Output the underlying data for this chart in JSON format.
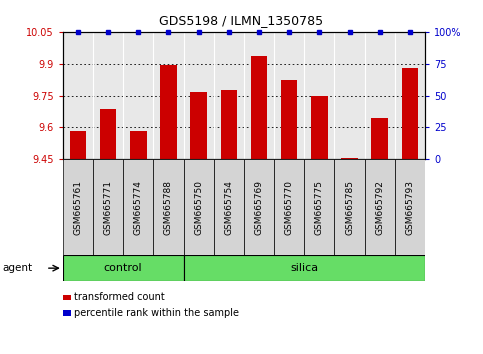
{
  "title": "GDS5198 / ILMN_1350785",
  "samples": [
    "GSM665761",
    "GSM665771",
    "GSM665774",
    "GSM665788",
    "GSM665750",
    "GSM665754",
    "GSM665769",
    "GSM665770",
    "GSM665775",
    "GSM665785",
    "GSM665792",
    "GSM665793"
  ],
  "bar_values": [
    9.585,
    9.685,
    9.585,
    9.895,
    9.765,
    9.775,
    9.935,
    9.825,
    9.748,
    9.455,
    9.645,
    9.882
  ],
  "percentile_values": [
    100,
    100,
    100,
    100,
    100,
    100,
    100,
    100,
    100,
    100,
    100,
    100
  ],
  "bar_color": "#CC0000",
  "dot_color": "#0000CC",
  "ylim_left": [
    9.45,
    10.05
  ],
  "ylim_right": [
    0,
    100
  ],
  "yticks_left": [
    9.45,
    9.6,
    9.75,
    9.9,
    10.05
  ],
  "yticks_right": [
    0,
    25,
    50,
    75,
    100
  ],
  "ytick_labels_left": [
    "9.45",
    "9.6",
    "9.75",
    "9.9",
    "10.05"
  ],
  "ytick_labels_right": [
    "0",
    "25",
    "50",
    "75",
    "100%"
  ],
  "grid_values": [
    9.6,
    9.75,
    9.9
  ],
  "n_control": 4,
  "n_silica": 8,
  "agent_label": "agent",
  "control_label": "control",
  "silica_label": "silica",
  "legend_bar_label": "transformed count",
  "legend_dot_label": "percentile rank within the sample",
  "background_color": "#ffffff",
  "plot_bg_color": "#e8e8e8",
  "group_bg": "#66DD66",
  "bar_width": 0.55,
  "xlim": [
    -0.5,
    11.5
  ]
}
